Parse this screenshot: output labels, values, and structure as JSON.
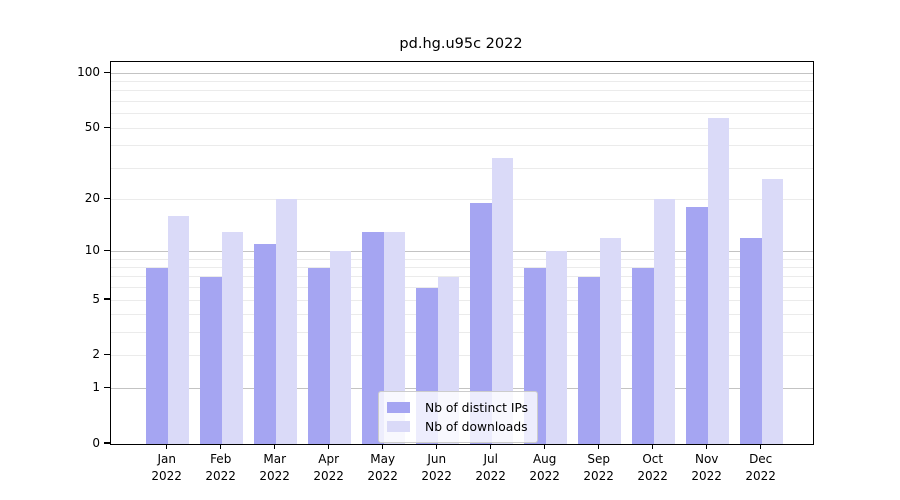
{
  "title": "pd.hg.u95c 2022",
  "chart_data": {
    "type": "bar",
    "categories": [
      "Jan",
      "Feb",
      "Mar",
      "Apr",
      "May",
      "Jun",
      "Jul",
      "Aug",
      "Sep",
      "Oct",
      "Nov",
      "Dec"
    ],
    "x_year_line": "2022",
    "series": [
      {
        "name": "Nb of distinct IPs",
        "color": "#a5a5f2",
        "values": [
          8,
          7,
          11,
          8,
          13,
          6,
          19,
          8,
          7,
          8,
          18,
          12
        ]
      },
      {
        "name": "Nb of downloads",
        "color": "#dadaf8",
        "values": [
          16,
          13,
          20,
          10,
          13,
          7,
          34,
          10,
          12,
          20,
          57,
          26
        ]
      }
    ],
    "yscale": "log(1+y)",
    "ylim": [
      0,
      115
    ],
    "y_tick_values": [
      0,
      1,
      2,
      5,
      10,
      20,
      50,
      100
    ],
    "major_gridline_values": [
      1,
      10,
      100
    ],
    "minor_gridline_values": [
      2,
      3,
      4,
      5,
      6,
      7,
      8,
      9,
      20,
      30,
      40,
      50,
      60,
      70,
      80,
      90
    ],
    "legend_position": "lower center",
    "grid": true
  },
  "colors": {
    "bar_distinct_ips": "#a5a5f2",
    "bar_downloads": "#dadaf8",
    "gridline_major": "#c3c3c3",
    "gridline_minor": "#ebebeb",
    "frame": "#000000",
    "legend_border": "#cccccc"
  }
}
